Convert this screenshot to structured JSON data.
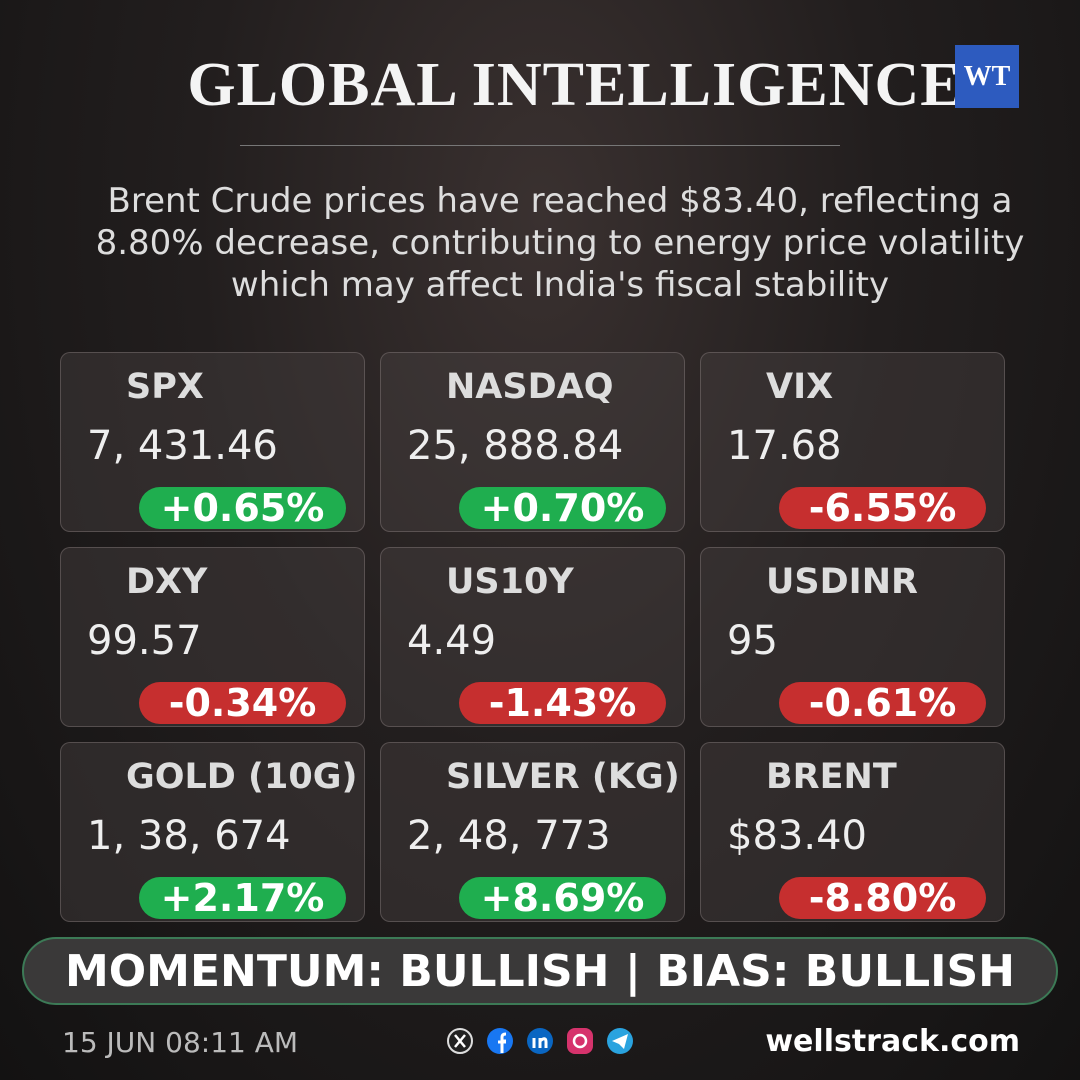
{
  "header": {
    "title": "GLOBAL INTELLIGENCE",
    "logo": "WT"
  },
  "summary": "Brent Crude prices have reached $83.40, reflecting a 8.80% decrease, contributing to energy price volatility which may affect India's fiscal stability",
  "cards": [
    {
      "name": "SPX",
      "value": "7, 431.46",
      "change": "+0.65%",
      "color": "#1fae4f"
    },
    {
      "name": "NASDAQ",
      "value": "25, 888.84",
      "change": "+0.70%",
      "color": "#1fae4f"
    },
    {
      "name": "VIX",
      "value": "17.68",
      "change": "-6.55%",
      "color": "#c62f2f"
    },
    {
      "name": "DXY",
      "value": "99.57",
      "change": "-0.34%",
      "color": "#c62f2f"
    },
    {
      "name": "US10Y",
      "value": "4.49",
      "change": "-1.43%",
      "color": "#c62f2f"
    },
    {
      "name": "USDINR",
      "value": "95",
      "change": "-0.61%",
      "color": "#c62f2f"
    },
    {
      "name": "GOLD (10G)",
      "value": "1, 38, 674",
      "change": "+2.17%",
      "color": "#1fae4f"
    },
    {
      "name": "SILVER (KG)",
      "value": "2, 48, 773",
      "change": "+8.69%",
      "color": "#1fae4f"
    },
    {
      "name": "BRENT",
      "value": "$83.40",
      "change": "-8.80%",
      "color": "#c62f2f"
    }
  ],
  "banner": "MOMENTUM: BULLISH | BIAS: BULLISH",
  "footer": {
    "timestamp": "15 JUN 08:11 AM",
    "website": "wellstrack.com"
  }
}
